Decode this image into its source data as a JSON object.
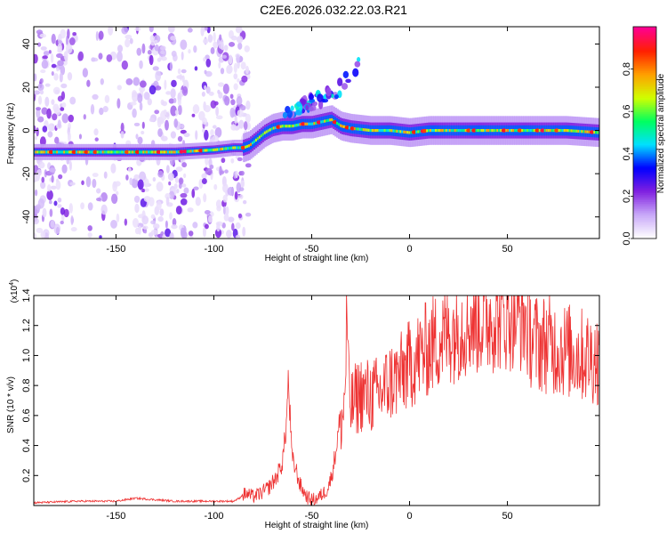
{
  "title": "C2E6.2026.032.22.03.R21",
  "chart_data": [
    {
      "type": "heatmap",
      "panel": "top",
      "xlabel": "Height of straight line (km)",
      "ylabel": "Frequency (Hz)",
      "xlim": [
        -192,
        97
      ],
      "ylim": [
        -50,
        48
      ],
      "xticks": [
        -150,
        -100,
        -50,
        0,
        50
      ],
      "yticks": [
        -40,
        -20,
        0,
        20,
        40
      ],
      "colorbar": {
        "label": "Normalized spectral amplitude",
        "range": [
          0,
          1
        ],
        "ticks": [
          0.0,
          0.2,
          0.4,
          0.6,
          0.8
        ],
        "colors": [
          "#ffffff",
          "#c8a8f8",
          "#8020e0",
          "#0000ff",
          "#00e0ff",
          "#00ff60",
          "#d0ff00",
          "#ffa000",
          "#ff2000",
          "#ff0090"
        ]
      },
      "ridge": {
        "x": [
          -192,
          -150,
          -120,
          -100,
          -90,
          -85,
          -82,
          -78,
          -74,
          -70,
          -65,
          -60,
          -55,
          -50,
          -45,
          -40,
          -35,
          -30,
          -20,
          -10,
          0,
          10,
          20,
          40,
          60,
          80,
          97
        ],
        "y": [
          -10,
          -10,
          -10,
          -9,
          -8,
          -8,
          -7,
          -4,
          -1,
          1,
          2,
          2,
          3,
          3,
          4,
          5,
          2,
          1,
          0,
          0,
          -1,
          0,
          0,
          0,
          0,
          0,
          -1
        ]
      },
      "branch": {
        "x": [
          -64,
          -58,
          -54,
          -50,
          -45,
          -40,
          -35,
          -30,
          -26
        ],
        "y": [
          8,
          10,
          12,
          13,
          15,
          17,
          20,
          26,
          30
        ]
      },
      "noise_region_x": [
        -192,
        -82
      ]
    },
    {
      "type": "line",
      "panel": "bottom",
      "series_name": "SNR",
      "xlabel": "Height of straight line (km)",
      "ylabel": "SNR (10 * v/v)",
      "y_multiplier": "(x10",
      "y_multiplier_exp": "4",
      "line_color": "#ee3333",
      "xlim": [
        -192,
        97
      ],
      "ylim": [
        0,
        1.4
      ],
      "xticks": [
        -150,
        -100,
        -50,
        0,
        50
      ],
      "yticks": [
        0.2,
        0.4,
        0.6,
        0.8,
        1.0,
        1.2,
        1.4
      ],
      "x": [
        -192,
        -170,
        -150,
        -140,
        -120,
        -100,
        -90,
        -87,
        -84,
        -80,
        -76,
        -72,
        -68,
        -65,
        -63,
        -62,
        -61,
        -60,
        -58,
        -56,
        -54,
        -52,
        -50,
        -48,
        -45,
        -42,
        -40,
        -38,
        -36,
        -34,
        -33,
        -32,
        -31,
        -30,
        -28,
        -25,
        -20,
        -15,
        -10,
        -5,
        0,
        5,
        10,
        15,
        20,
        25,
        30,
        35,
        40,
        45,
        50,
        55,
        58,
        60,
        62,
        65,
        70,
        75,
        80,
        85,
        90,
        97
      ],
      "y": [
        0.02,
        0.03,
        0.03,
        0.05,
        0.03,
        0.03,
        0.03,
        0.05,
        0.09,
        0.07,
        0.09,
        0.13,
        0.2,
        0.3,
        0.55,
        0.85,
        0.6,
        0.32,
        0.25,
        0.15,
        0.1,
        0.06,
        0.05,
        0.05,
        0.08,
        0.12,
        0.2,
        0.35,
        0.55,
        0.65,
        0.8,
        1.4,
        0.8,
        0.7,
        0.75,
        0.8,
        0.78,
        0.8,
        0.88,
        0.92,
        1.0,
        1.06,
        1.12,
        1.18,
        1.22,
        1.26,
        1.3,
        1.31,
        1.32,
        1.34,
        1.35,
        1.35,
        1.33,
        1.28,
        1.2,
        1.15,
        1.15,
        1.12,
        1.1,
        1.08,
        1.06,
        1.04
      ]
    }
  ]
}
